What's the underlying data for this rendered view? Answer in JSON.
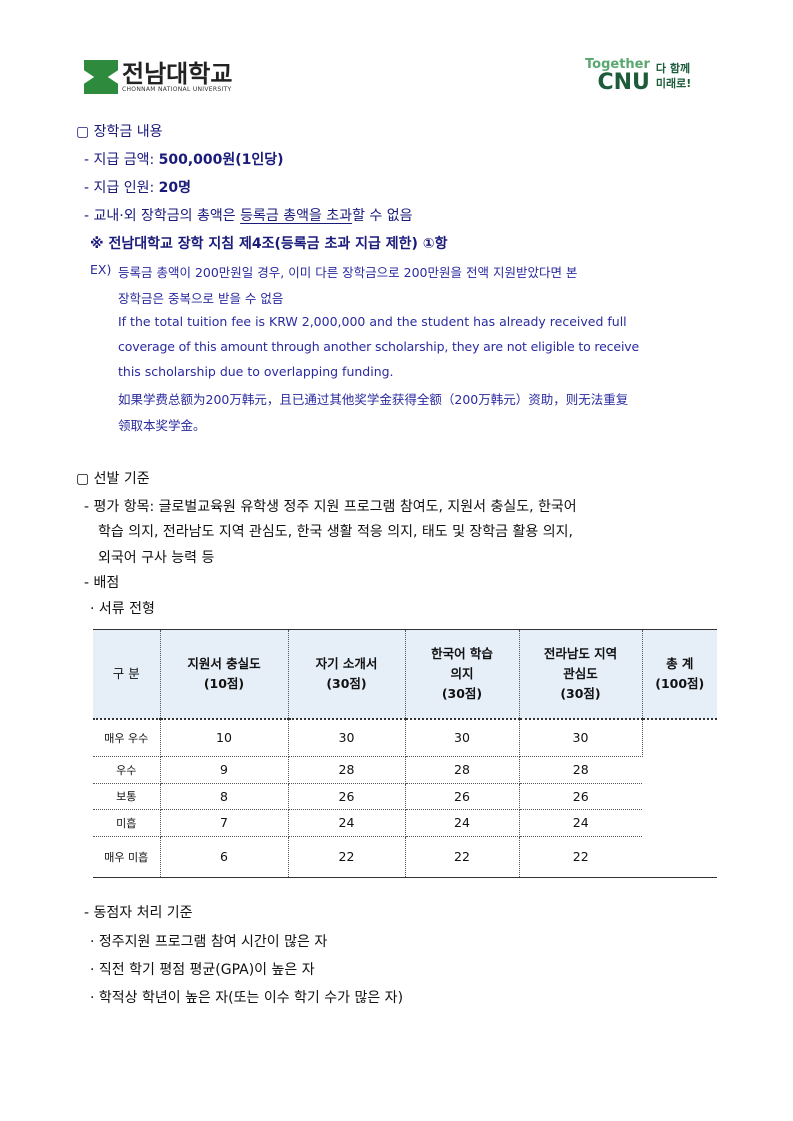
{
  "header": {
    "logo_left_name": "전남대학교",
    "logo_left_sub": "CHONNAM NATIONAL UNIVERSITY",
    "logo_right_top": "Together",
    "logo_right_main": "CNU",
    "logo_right_slogan1": "다 함께",
    "logo_right_slogan2": "미래로!"
  },
  "section1": {
    "title": "▢ 장학금 내용",
    "amount_label": "- 지급 금액: ",
    "amount_value": "500,000원(1인당)",
    "count_label": "- 지급 인원: ",
    "count_value": "20명",
    "limit_pre": "- 교내·외 장학금의 총액은 ",
    "limit_underline": "등록금 총액을 초과",
    "limit_post": "할 수 없음",
    "rule": "※ 전남대학교 장학 지침 제4조(등록금 초과 지급 제한) ①항",
    "ex_prefix": "EX)",
    "ex_ko_1": "등록금 총액이 200만원일 경우, 이미 다른 장학금으로 200만원을 전액 지원받았다면 본",
    "ex_ko_2": "장학금은 중복으로 받을 수 없음",
    "ex_en_1": "If the total tuition fee is KRW 2,000,000 and the student has already received full",
    "ex_en_2": "coverage of this amount through another scholarship, they are not eligible to receive",
    "ex_en_3": "this scholarship due to overlapping funding.",
    "ex_zh_1": "如果学费总额为200万韩元，且已通过其他奖学金获得全额（200万韩元）资助，则无法重复",
    "ex_zh_2": "领取本奖学金。"
  },
  "section2": {
    "title": "▢ 선발 기준",
    "criteria_1": "- 평가 항목: 글로벌교육원 유학생 정주 지원 프로그램 참여도, 지원서 충실도, 한국어",
    "criteria_2": "학습 의지, 전라남도 지역 관심도, 한국 생활 적응 의지, 태도 및 장학금 활용 의지,",
    "criteria_3": "외국어 구사 능력 등",
    "scoring": "- 배점",
    "doc_review": "· 서류 전형",
    "table": {
      "headers": [
        [
          "구  분"
        ],
        [
          "지원서 충실도",
          "(10점)"
        ],
        [
          "자기 소개서",
          "(30점)"
        ],
        [
          "한국어 학습",
          "의지",
          "(30점)"
        ],
        [
          "전라남도 지역",
          "관심도",
          "(30점)"
        ],
        [
          "총    계",
          "(100점)"
        ]
      ],
      "rows": [
        {
          "label": "매우 우수",
          "values": [
            "10",
            "30",
            "30",
            "30"
          ]
        },
        {
          "label": "우수",
          "values": [
            "9",
            "28",
            "28",
            "28"
          ]
        },
        {
          "label": "보통",
          "values": [
            "8",
            "26",
            "26",
            "26"
          ]
        },
        {
          "label": "미흡",
          "values": [
            "7",
            "24",
            "24",
            "24"
          ]
        },
        {
          "label": "매우 미흡",
          "values": [
            "6",
            "22",
            "22",
            "22"
          ]
        }
      ]
    },
    "tie_title": "- 동점자 처리 기준",
    "tie_1": "· 정주지원 프로그램 참여 시간이 많은 자",
    "tie_2": "· 직전 학기 평점 평균(GPA)이 높은 자",
    "tie_3": "· 학적상 학년이 높은 자(또는 이수 학기 수가 많은 자)"
  }
}
